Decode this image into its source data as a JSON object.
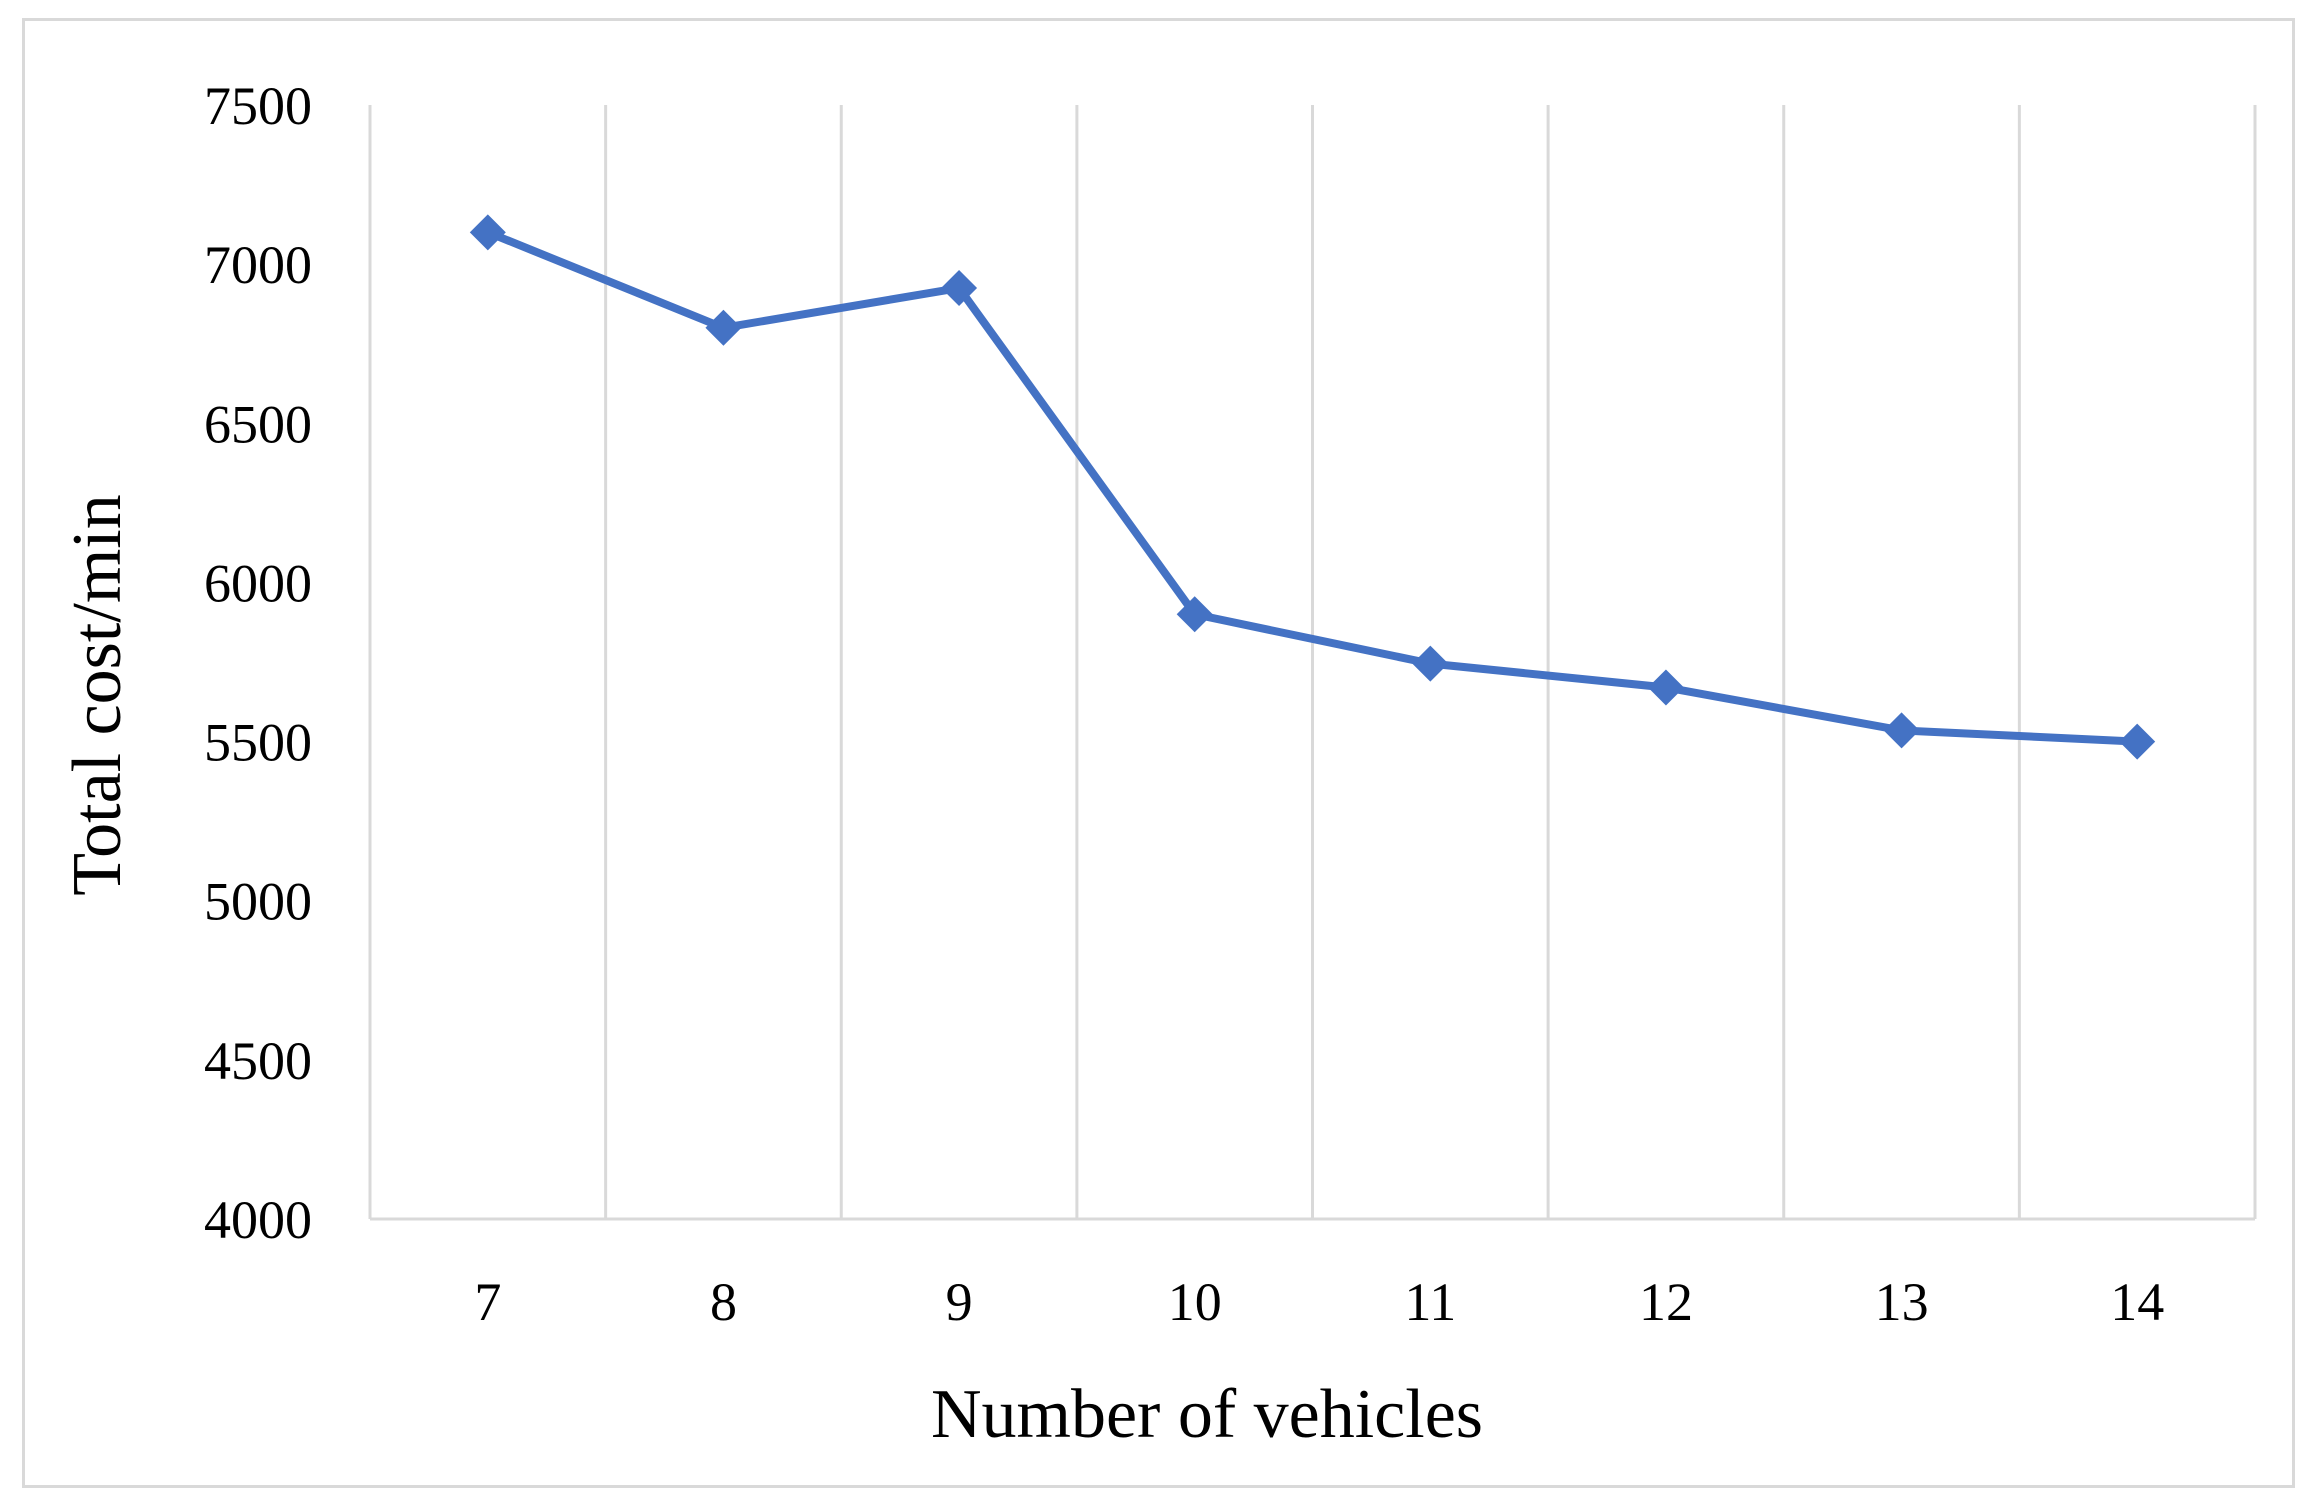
{
  "chart_data": {
    "type": "line",
    "title": "",
    "xlabel": "Number of vehicles",
    "ylabel": "Total cost/min",
    "categories": [
      "7",
      "8",
      "9",
      "10",
      "11",
      "12",
      "13",
      "14"
    ],
    "series": [
      {
        "values": [
          7100,
          6800,
          6925,
          5900,
          5745,
          5670,
          5535,
          5500
        ]
      }
    ],
    "ylim": [
      4000,
      7500
    ],
    "yticks": [
      "4000",
      "4500",
      "5000",
      "5500",
      "6000",
      "6500",
      "7000",
      "7500"
    ],
    "grid": "vertical",
    "legend": "none",
    "marker": "diamond",
    "line_color": "#4472c4",
    "grid_color": "#d9d9d9"
  }
}
